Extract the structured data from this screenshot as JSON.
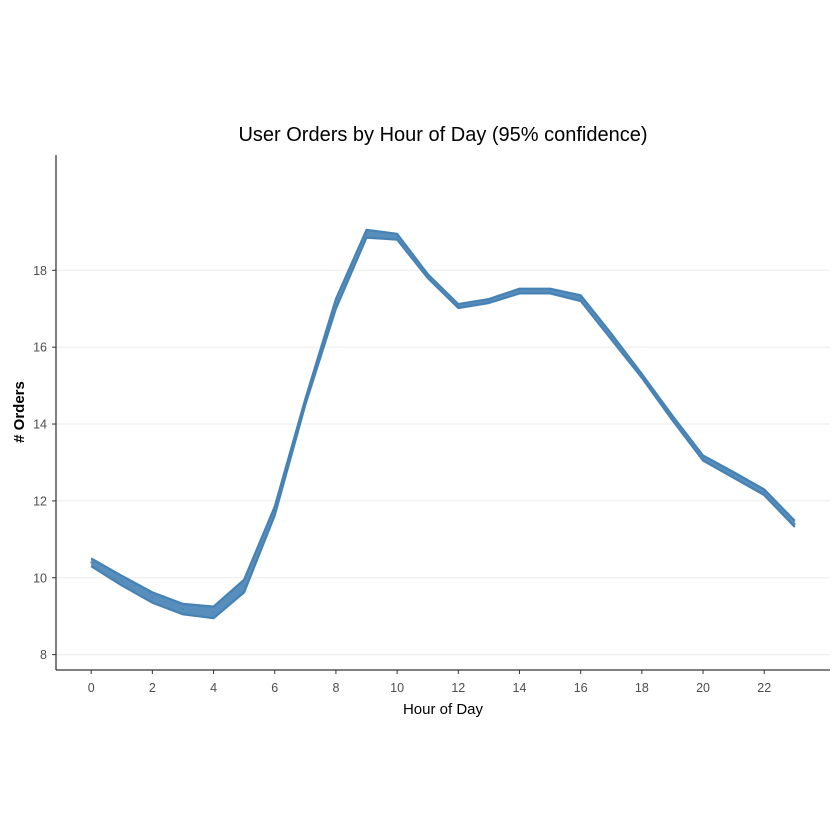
{
  "chart_data": {
    "type": "line",
    "title": "User Orders by Hour of Day (95% confidence)",
    "xlabel": "Hour of Day",
    "ylabel": "# Orders",
    "xlim": [
      -1.15,
      24.15
    ],
    "ylim": [
      7.6,
      21.0
    ],
    "x_ticks": [
      0,
      2,
      4,
      6,
      8,
      10,
      12,
      14,
      16,
      18,
      20,
      22
    ],
    "y_ticks": [
      8,
      10,
      12,
      14,
      16,
      18
    ],
    "grid": "horizontal",
    "series": [
      {
        "x": [
          0,
          1,
          2,
          3,
          4,
          5,
          6,
          7,
          8,
          9,
          10,
          11,
          12,
          13,
          14,
          15,
          16,
          17,
          18,
          19,
          20,
          21,
          22,
          23
        ],
        "lower": [
          10.3,
          9.8,
          9.35,
          9.05,
          8.95,
          9.62,
          11.62,
          14.5,
          17.0,
          18.85,
          18.8,
          17.8,
          17.02,
          17.15,
          17.4,
          17.4,
          17.2,
          16.2,
          15.2,
          14.1,
          13.05,
          12.6,
          12.15,
          11.32
        ],
        "upper": [
          10.5,
          10.05,
          9.62,
          9.32,
          9.25,
          9.95,
          11.85,
          14.65,
          17.25,
          19.05,
          18.95,
          17.9,
          17.12,
          17.25,
          17.52,
          17.52,
          17.35,
          16.35,
          15.3,
          14.22,
          13.18,
          12.75,
          12.3,
          11.48
        ]
      }
    ]
  },
  "colors": {
    "series": "#4682b4",
    "grid": "#ebebeb",
    "axis": "#000000"
  }
}
